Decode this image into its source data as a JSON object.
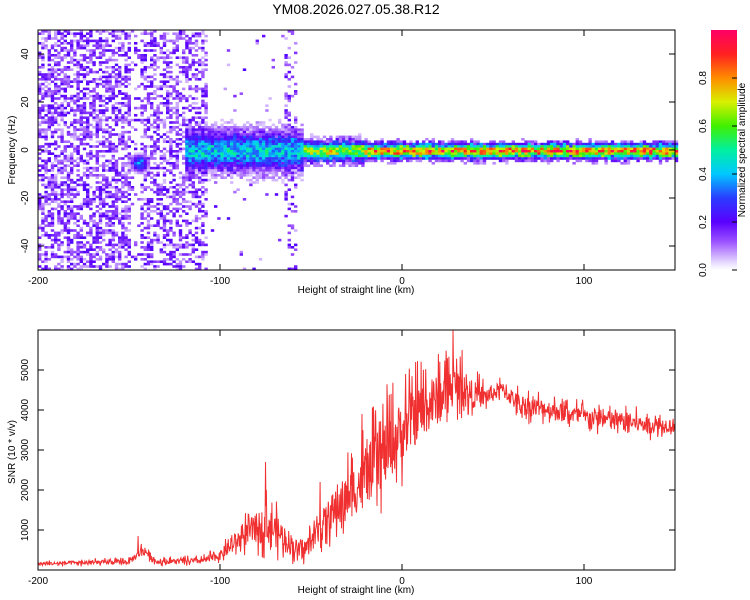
{
  "title": "YM08.2026.027.05.38.R12",
  "chart_data": [
    {
      "type": "heatmap",
      "xlabel": "Height of straight line (km)",
      "ylabel": "Frequency (Hz)",
      "xlim": [
        -200,
        150
      ],
      "ylim": [
        -50,
        50
      ],
      "xticks": [
        -200,
        -100,
        0,
        100
      ],
      "yticks": [
        -40,
        -20,
        0,
        20,
        40
      ],
      "colorbar": {
        "label": "Normalized spectral amplitude",
        "range": [
          0.0,
          1.0
        ],
        "ticks": [
          "0.0",
          "0.2",
          "0.4",
          "0.6",
          "0.8"
        ]
      },
      "ridge": {
        "frequency_hz": 0,
        "segments": [
          {
            "x_start": -120,
            "x_end": -55,
            "halfwidth_hz": 4,
            "amplitude": 0.45
          },
          {
            "x_start": -55,
            "x_end": -20,
            "halfwidth_hz": 2,
            "amplitude": 0.7
          },
          {
            "x_start": -20,
            "x_end": 150,
            "halfwidth_hz": 1.5,
            "amplitude": 0.85
          }
        ],
        "blob": {
          "x": -145,
          "frequency_hz": -5,
          "amplitude": 0.45
        }
      },
      "noise_regions": [
        {
          "x_start": -200,
          "x_end": -150,
          "density": 0.55
        },
        {
          "x_start": -150,
          "x_end": -145,
          "density": 0.12
        },
        {
          "x_start": -145,
          "x_end": -108,
          "density": 0.45
        },
        {
          "x_start": -108,
          "x_end": -60,
          "density": 0.02
        },
        {
          "x_start": -65,
          "x_end": -58,
          "density": 0.25
        }
      ]
    },
    {
      "type": "line",
      "xlabel": "Height of straight line (km)",
      "ylabel": "SNR (10 * v/v)",
      "xlim": [
        -200,
        150
      ],
      "ylim": [
        0,
        6000
      ],
      "xticks": [
        -200,
        -100,
        0,
        100
      ],
      "yticks": [
        1000,
        2000,
        3000,
        4000,
        5000
      ],
      "color": "#f03030",
      "series": [
        {
          "name": "SNR",
          "envelope_x": [
            -200,
            -150,
            -142,
            -135,
            -110,
            -100,
            -85,
            -75,
            -68,
            -55,
            -40,
            -25,
            -10,
            0,
            10,
            20,
            28,
            35,
            45,
            55,
            65,
            80,
            100,
            120,
            135,
            150
          ],
          "envelope_y": [
            150,
            200,
            500,
            200,
            220,
            350,
            900,
            1100,
            900,
            400,
            1300,
            2000,
            2800,
            3400,
            3900,
            4200,
            4600,
            4400,
            4300,
            4500,
            4100,
            4000,
            3800,
            3700,
            3600,
            3600
          ],
          "noise_amp_y": [
            80,
            120,
            250,
            120,
            140,
            220,
            600,
            900,
            800,
            350,
            900,
            1300,
            1600,
            1500,
            1400,
            1200,
            900,
            800,
            500,
            350,
            500,
            450,
            450,
            450,
            400,
            350
          ],
          "peaks": [
            [
              -145,
              850
            ],
            [
              -75,
              2700
            ],
            [
              -45,
              2200
            ],
            [
              -22,
              3900
            ],
            [
              2,
              4900
            ],
            [
              20,
              5400
            ],
            [
              28,
              6000
            ],
            [
              33,
              5500
            ]
          ]
        }
      ]
    }
  ]
}
